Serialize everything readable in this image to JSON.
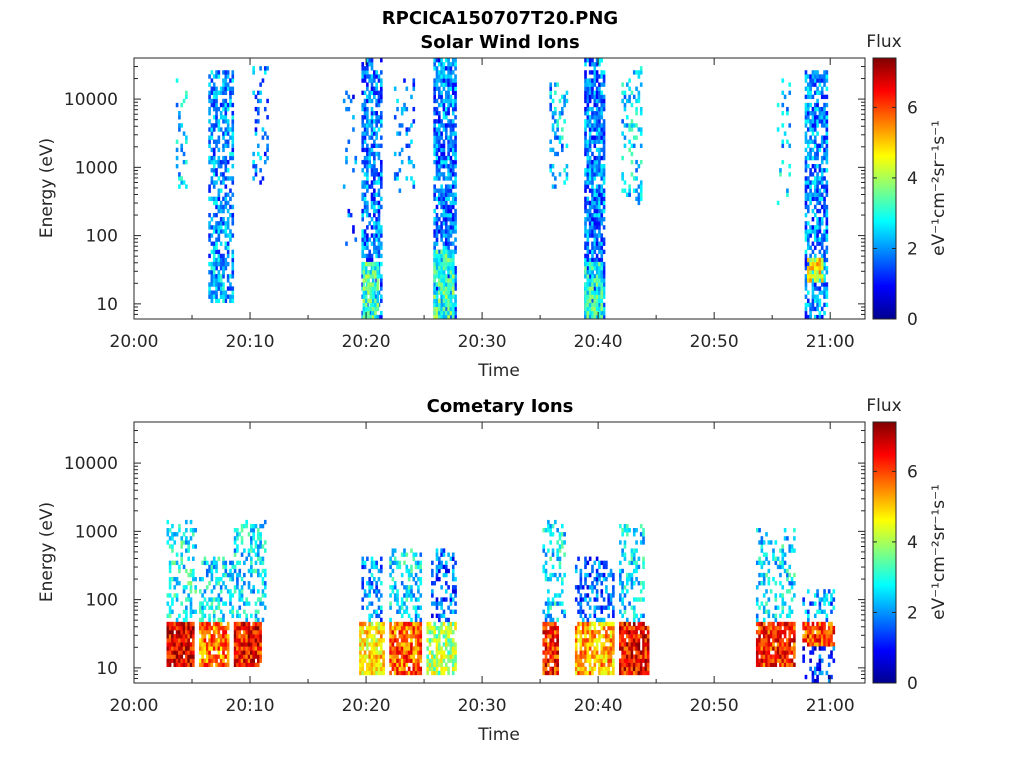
{
  "figure": {
    "title": "RPCICA150707T20.PNG"
  },
  "colormap": [
    "#00008f",
    "#0000ff",
    "#0080ff",
    "#00ffff",
    "#80ff80",
    "#ffff00",
    "#ff8000",
    "#ff0000",
    "#800000"
  ],
  "chart_data": [
    {
      "type": "heatmap",
      "title": "Solar Wind Ions",
      "xlabel": "Time",
      "ylabel": "Energy (eV)",
      "x_ticks": [
        "20:00",
        "20:10",
        "20:20",
        "20:30",
        "20:40",
        "20:50",
        "21:00"
      ],
      "y_ticks": [
        "10",
        "100",
        "1000",
        "10000"
      ],
      "y_scale": "log",
      "ylim": [
        6,
        40000
      ],
      "xlim_minutes_after_2000": [
        0,
        63
      ],
      "colorbar": {
        "title": "Flux",
        "label": "eV⁻¹cm⁻²sr⁻¹s⁻¹",
        "ticks": [
          "0",
          "2",
          "4",
          "6"
        ],
        "range": [
          0,
          7.4
        ]
      },
      "bursts": [
        {
          "t0": 3.6,
          "t1": 4.6,
          "e_lo": 500,
          "e_hi": 20000,
          "flux": 2.5,
          "density": 0.25
        },
        {
          "t0": 6.4,
          "t1": 8.6,
          "e_lo": 10,
          "e_hi": 25000,
          "flux": 2.0,
          "density": 0.55
        },
        {
          "t0": 6.6,
          "t1": 7.8,
          "e_lo": 10,
          "e_hi": 40,
          "flux": 2.3,
          "density": 0.7
        },
        {
          "t0": 10.2,
          "t1": 11.6,
          "e_lo": 600,
          "e_hi": 30000,
          "flux": 1.8,
          "density": 0.25
        },
        {
          "t0": 18.0,
          "t1": 19.2,
          "e_lo": 60,
          "e_hi": 15000,
          "flux": 1.5,
          "density": 0.08
        },
        {
          "t0": 19.6,
          "t1": 21.4,
          "e_lo": 6,
          "e_hi": 40000,
          "flux": 1.8,
          "density": 0.65
        },
        {
          "t0": 19.7,
          "t1": 21.0,
          "e_lo": 6,
          "e_hi": 40,
          "flux": 3.2,
          "density": 0.9
        },
        {
          "t0": 22.4,
          "t1": 24.2,
          "e_lo": 400,
          "e_hi": 20000,
          "flux": 2.0,
          "density": 0.2
        },
        {
          "t0": 25.8,
          "t1": 27.8,
          "e_lo": 6,
          "e_hi": 40000,
          "flux": 1.8,
          "density": 0.75
        },
        {
          "t0": 25.8,
          "t1": 27.6,
          "e_lo": 6,
          "e_hi": 60,
          "flux": 3.2,
          "density": 0.85
        },
        {
          "t0": 35.8,
          "t1": 37.4,
          "e_lo": 500,
          "e_hi": 20000,
          "flux": 2.3,
          "density": 0.3
        },
        {
          "t0": 38.8,
          "t1": 40.6,
          "e_lo": 6,
          "e_hi": 40000,
          "flux": 1.8,
          "density": 0.8
        },
        {
          "t0": 38.8,
          "t1": 40.4,
          "e_lo": 6,
          "e_hi": 40,
          "flux": 3.0,
          "density": 0.9
        },
        {
          "t0": 42.0,
          "t1": 43.8,
          "e_lo": 300,
          "e_hi": 30000,
          "flux": 2.5,
          "density": 0.3
        },
        {
          "t0": 55.4,
          "t1": 56.6,
          "e_lo": 300,
          "e_hi": 20000,
          "flux": 2.4,
          "density": 0.2
        },
        {
          "t0": 57.8,
          "t1": 59.8,
          "e_lo": 6,
          "e_hi": 25000,
          "flux": 1.9,
          "density": 0.65
        },
        {
          "t0": 58.0,
          "t1": 59.4,
          "e_lo": 20,
          "e_hi": 50,
          "flux": 4.6,
          "density": 0.9
        }
      ]
    },
    {
      "type": "heatmap",
      "title": "Cometary Ions",
      "xlabel": "Time",
      "ylabel": "Energy (eV)",
      "x_ticks": [
        "20:00",
        "20:10",
        "20:20",
        "20:30",
        "20:40",
        "20:50",
        "21:00"
      ],
      "y_ticks": [
        "10",
        "100",
        "1000",
        "10000"
      ],
      "y_scale": "log",
      "ylim": [
        6,
        40000
      ],
      "xlim_minutes_after_2000": [
        0,
        63
      ],
      "colorbar": {
        "title": "Flux",
        "label": "eV⁻¹cm⁻²sr⁻¹s⁻¹",
        "ticks": [
          "0",
          "2",
          "4",
          "6"
        ],
        "range": [
          0,
          7.4
        ]
      },
      "bursts": [
        {
          "t0": 2.8,
          "t1": 5.2,
          "e_lo": 10,
          "e_hi": 50,
          "flux": 6.6,
          "density": 0.95
        },
        {
          "t0": 2.8,
          "t1": 5.4,
          "e_lo": 50,
          "e_hi": 1500,
          "flux": 2.8,
          "density": 0.35
        },
        {
          "t0": 5.6,
          "t1": 8.2,
          "e_lo": 10,
          "e_hi": 50,
          "flux": 5.6,
          "density": 0.9
        },
        {
          "t0": 5.6,
          "t1": 8.6,
          "e_lo": 50,
          "e_hi": 400,
          "flux": 2.6,
          "density": 0.4
        },
        {
          "t0": 8.6,
          "t1": 11.0,
          "e_lo": 10,
          "e_hi": 50,
          "flux": 6.4,
          "density": 0.95
        },
        {
          "t0": 8.6,
          "t1": 11.4,
          "e_lo": 50,
          "e_hi": 1400,
          "flux": 2.6,
          "density": 0.35
        },
        {
          "t0": 19.4,
          "t1": 21.6,
          "e_lo": 8,
          "e_hi": 50,
          "flux": 4.8,
          "density": 0.85
        },
        {
          "t0": 19.6,
          "t1": 21.4,
          "e_lo": 50,
          "e_hi": 400,
          "flux": 2.0,
          "density": 0.4
        },
        {
          "t0": 22.0,
          "t1": 24.8,
          "e_lo": 8,
          "e_hi": 50,
          "flux": 5.8,
          "density": 0.9
        },
        {
          "t0": 22.0,
          "t1": 24.8,
          "e_lo": 50,
          "e_hi": 600,
          "flux": 2.6,
          "density": 0.4
        },
        {
          "t0": 25.2,
          "t1": 27.8,
          "e_lo": 8,
          "e_hi": 50,
          "flux": 4.0,
          "density": 0.7
        },
        {
          "t0": 25.6,
          "t1": 27.8,
          "e_lo": 50,
          "e_hi": 600,
          "flux": 1.6,
          "density": 0.35
        },
        {
          "t0": 35.2,
          "t1": 36.6,
          "e_lo": 8,
          "e_hi": 50,
          "flux": 6.2,
          "density": 0.9
        },
        {
          "t0": 35.2,
          "t1": 37.2,
          "e_lo": 50,
          "e_hi": 1400,
          "flux": 2.6,
          "density": 0.35
        },
        {
          "t0": 38.0,
          "t1": 41.4,
          "e_lo": 8,
          "e_hi": 50,
          "flux": 5.2,
          "density": 0.8
        },
        {
          "t0": 38.0,
          "t1": 41.4,
          "e_lo": 50,
          "e_hi": 400,
          "flux": 1.6,
          "density": 0.4
        },
        {
          "t0": 41.8,
          "t1": 44.4,
          "e_lo": 8,
          "e_hi": 50,
          "flux": 6.4,
          "density": 0.9
        },
        {
          "t0": 41.8,
          "t1": 44.0,
          "e_lo": 50,
          "e_hi": 1200,
          "flux": 2.6,
          "density": 0.4
        },
        {
          "t0": 53.6,
          "t1": 57.0,
          "e_lo": 10,
          "e_hi": 50,
          "flux": 6.2,
          "density": 0.9
        },
        {
          "t0": 53.6,
          "t1": 57.0,
          "e_lo": 50,
          "e_hi": 1100,
          "flux": 2.6,
          "density": 0.3
        },
        {
          "t0": 57.6,
          "t1": 60.4,
          "e_lo": 20,
          "e_hi": 50,
          "flux": 6.0,
          "density": 0.9
        },
        {
          "t0": 57.6,
          "t1": 60.4,
          "e_lo": 6,
          "e_hi": 20,
          "flux": 1.2,
          "density": 0.4
        },
        {
          "t0": 57.6,
          "t1": 60.4,
          "e_lo": 50,
          "e_hi": 150,
          "flux": 2.0,
          "density": 0.35
        }
      ]
    }
  ]
}
